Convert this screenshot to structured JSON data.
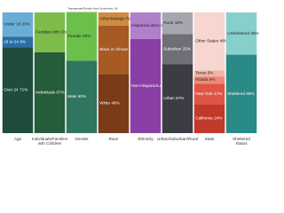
{
  "chart_data": {
    "type": "stacked-column",
    "ylim": [
      0,
      100
    ],
    "columns": [
      {
        "name": "Age",
        "segments": [
          {
            "label": "Over 24",
            "value": 71,
            "value_label": "71%",
            "color": "#1e4d3c"
          },
          {
            "label": "18 to 24",
            "value": 9,
            "value_label": "9%",
            "color": "#2b6ea6"
          },
          {
            "label": "Under 18",
            "value": 20,
            "value_label": "20%",
            "color": "#6aaed6"
          }
        ]
      },
      {
        "name": "Individuals/Families with Children",
        "segments": [
          {
            "label": "Individuals",
            "value": 67,
            "value_label": "67%",
            "color": "#255c3a"
          },
          {
            "label": "Families with Children",
            "value": 33,
            "value_label": "33%",
            "color": "#7dbb4a"
          }
        ]
      },
      {
        "name": "Gender",
        "segments": [
          {
            "label": "Male",
            "value": 60,
            "value_label": "60%",
            "color": "#2f7560"
          },
          {
            "label": "Female",
            "value": 40,
            "value_label": "40%",
            "color": "#6cbf4a"
          },
          {
            "label": "Transgender/Gender Non-Conforming",
            "value": 1,
            "value_label": "1%",
            "color": "#c9e8b5"
          }
        ]
      },
      {
        "name": "Race",
        "segments": [
          {
            "label": "White",
            "value": 49,
            "value_label": "49%",
            "color": "#7a3b18"
          },
          {
            "label": "Black or African American",
            "value": 40,
            "value_label": "40%",
            "color": "#a65a24"
          },
          {
            "label": "Other/Multiple Races",
            "value": 11,
            "value_label": "11%",
            "color": "#cf8c3e"
          }
        ]
      },
      {
        "name": "Ethnicity",
        "segments": [
          {
            "label": "Non-Hispanic/Latino",
            "value": 78,
            "value_label": "78%",
            "color": "#8a3fa6"
          },
          {
            "label": "Hispanic/Latino",
            "value": 22,
            "value_label": "22%",
            "color": "#b27fcb"
          }
        ]
      },
      {
        "name": "Urban/Suburban/Rural",
        "segments": [
          {
            "label": "Urban",
            "value": 57,
            "value_label": "57%",
            "color": "#3c3c44"
          },
          {
            "label": "Suburban",
            "value": 25,
            "value_label": "25%",
            "color": "#6f6f78"
          },
          {
            "label": "Rural",
            "value": 18,
            "value_label": "18%",
            "color": "#a6a6ae"
          }
        ]
      },
      {
        "name": "State",
        "segments": [
          {
            "label": "California",
            "value": 24,
            "value_label": "24%",
            "color": "#c0392b"
          },
          {
            "label": "New York",
            "value": 17,
            "value_label": "17%",
            "color": "#e05545"
          },
          {
            "label": "Florida",
            "value": 6,
            "value_label": "6%",
            "color": "#ef8a78"
          },
          {
            "label": "Texas",
            "value": 5,
            "value_label": "5%",
            "color": "#f4b3a8"
          },
          {
            "label": "Other States",
            "value": 48,
            "value_label": "48%",
            "color": "#f6d6cf"
          }
        ]
      },
      {
        "name": "Sheltered Status",
        "segments": [
          {
            "label": "Sheltered",
            "value": 65,
            "value_label": "65%",
            "color": "#2a8a86"
          },
          {
            "label": "Unsheltered",
            "value": 35,
            "value_label": "35%",
            "color": "#86d0cc"
          }
        ]
      }
    ]
  }
}
